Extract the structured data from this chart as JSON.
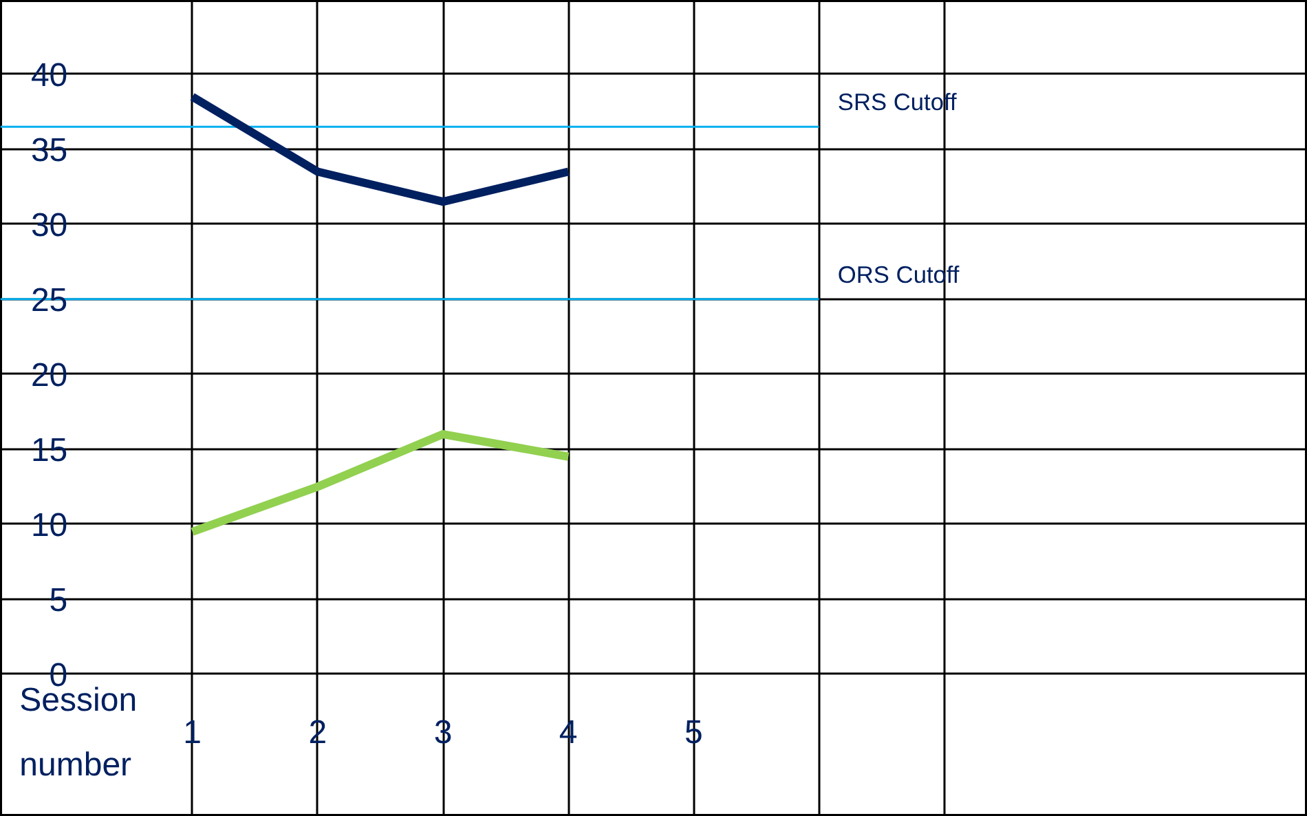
{
  "chart_data": {
    "type": "line",
    "xlabel": "Session number",
    "x": [
      1,
      2,
      3,
      4
    ],
    "series": [
      {
        "color": "#002060",
        "values": [
          38.5,
          33.5,
          31.5,
          33.5
        ]
      },
      {
        "color": "#92d050",
        "values": [
          9.5,
          12.5,
          16,
          14.5
        ]
      }
    ],
    "xlim": [
      -0.53,
      9.9
    ],
    "ylim": [
      -9.5,
      44.9
    ],
    "xticks": [
      1,
      2,
      3,
      4,
      5
    ],
    "yticks": [
      0,
      5,
      10,
      15,
      20,
      25,
      30,
      35,
      40
    ],
    "ref_lines": [
      {
        "axis": "y",
        "value": 36.5,
        "label": "SRS Cutoff",
        "color": "#00b0f0"
      },
      {
        "axis": "y",
        "value": 25,
        "label": "ORS Cutoff",
        "color": "#00b0f0"
      }
    ],
    "grid": true,
    "marker": "none",
    "line_style": "solid"
  }
}
